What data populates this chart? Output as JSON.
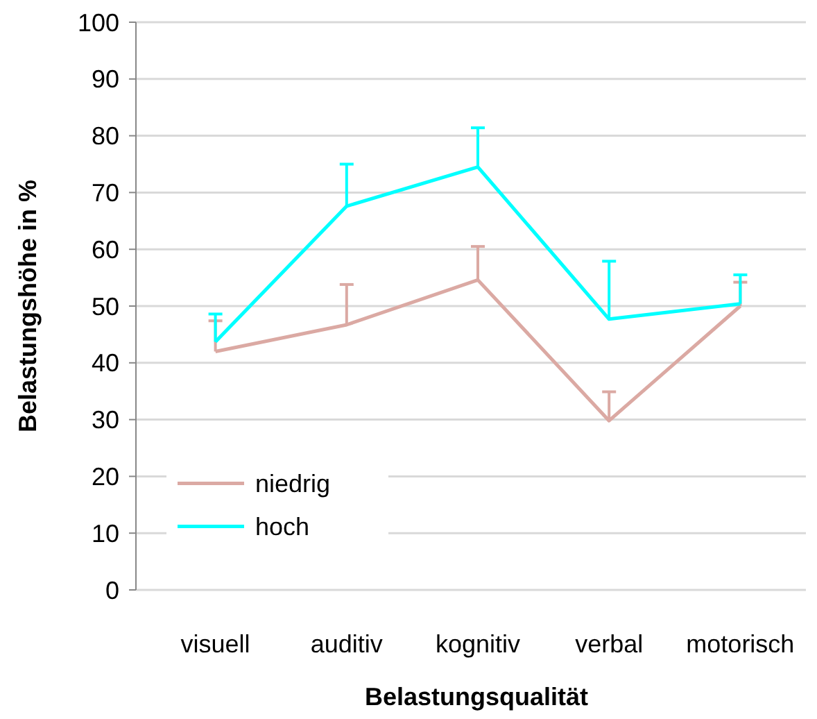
{
  "chart_data": {
    "type": "line",
    "xlabel": "Belastungsqualität",
    "ylabel": "Belastungshöhe in %",
    "categories": [
      "visuell",
      "auditiv",
      "kognitiv",
      "verbal",
      "motorisch"
    ],
    "series": [
      {
        "name": "niedrig",
        "color": "#dba9a3",
        "values": [
          42,
          46.7,
          54.6,
          29.8,
          50
        ],
        "errors": [
          [
            42,
            47.4
          ],
          [
            46.7,
            53.8
          ],
          [
            54.6,
            60.5
          ],
          [
            29.8,
            34.9
          ],
          [
            50,
            54.2
          ]
        ]
      },
      {
        "name": "hoch",
        "color": "#00ffff",
        "values": [
          43.7,
          67.6,
          74.5,
          47.7,
          50.4
        ],
        "errors": [
          [
            43.7,
            48.6
          ],
          [
            67.6,
            75
          ],
          [
            74.5,
            81.4
          ],
          [
            47.7,
            57.9
          ],
          [
            50.4,
            55.5
          ]
        ]
      }
    ],
    "ylim": [
      0,
      100
    ],
    "yticks": [
      0,
      10,
      20,
      30,
      40,
      50,
      60,
      70,
      80,
      90,
      100
    ],
    "grid": "y",
    "legend": "bottom left",
    "marker": "none",
    "line_style": "solid"
  }
}
